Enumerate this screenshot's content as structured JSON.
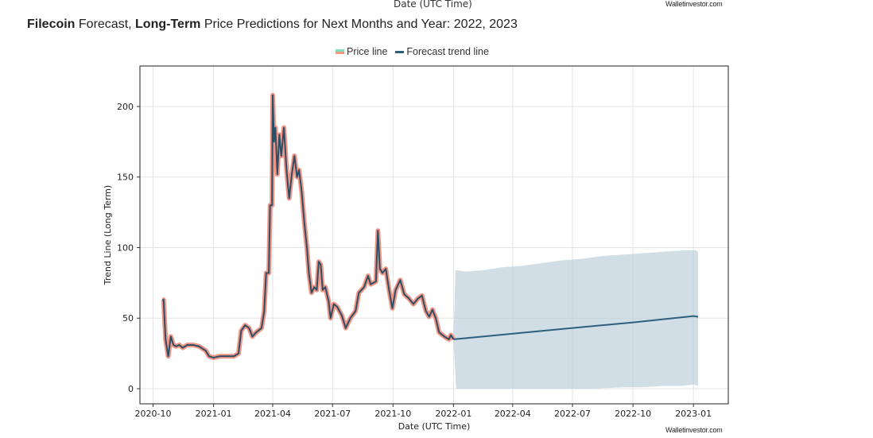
{
  "header": {
    "cut_off_label": "Date (UTC Time)",
    "watermark": "Walletinvestor.com",
    "title_parts": [
      {
        "text": "Filecoin",
        "bold": true
      },
      {
        "text": " Forecast, ",
        "bold": false
      },
      {
        "text": "Long-Term",
        "bold": true
      },
      {
        "text": " Price Predictions for Next Months and Year: 2022, 2023",
        "bold": false
      }
    ]
  },
  "legend": {
    "items": [
      {
        "label": "Price line",
        "colors": [
          "#7fe0c0",
          "#f59a86"
        ]
      },
      {
        "label": "Forecast trend line",
        "colors": [
          "#2d5f7f"
        ]
      }
    ]
  },
  "chart_data": {
    "type": "line",
    "xlabel": "Date (UTC Time)",
    "ylabel": "Trend Line (Long Term)",
    "xlim": [
      "2020-09-11",
      "2023-02-23"
    ],
    "ylim": [
      -10.7,
      228.7
    ],
    "x_ticks": [
      "2020-10",
      "2021-01",
      "2021-04",
      "2021-07",
      "2021-10",
      "2022-01",
      "2022-04",
      "2022-07",
      "2022-10",
      "2023-01"
    ],
    "y_ticks": [
      0,
      50,
      100,
      150,
      200
    ],
    "grid": true,
    "legend_placement": "top-center",
    "colors": {
      "price_glow": "#f08a78",
      "price_line": "#2d4f66",
      "forecast_line": "#2d5f7f",
      "band": "#b9cdd8"
    },
    "series": [
      {
        "name": "Price line",
        "points": [
          [
            "2020-10-15",
            63
          ],
          [
            "2020-10-17",
            63
          ],
          [
            "2020-10-20",
            35
          ],
          [
            "2020-10-24",
            23
          ],
          [
            "2020-10-28",
            37
          ],
          [
            "2020-11-01",
            31
          ],
          [
            "2020-11-05",
            30
          ],
          [
            "2020-11-10",
            31
          ],
          [
            "2020-11-15",
            29
          ],
          [
            "2020-11-22",
            31
          ],
          [
            "2020-12-01",
            31
          ],
          [
            "2020-12-10",
            30
          ],
          [
            "2020-12-20",
            27
          ],
          [
            "2020-12-25",
            23
          ],
          [
            "2021-01-01",
            22
          ],
          [
            "2021-01-10",
            23
          ],
          [
            "2021-01-20",
            23
          ],
          [
            "2021-02-01",
            23
          ],
          [
            "2021-02-08",
            25
          ],
          [
            "2021-02-12",
            41
          ],
          [
            "2021-02-18",
            45
          ],
          [
            "2021-02-24",
            43
          ],
          [
            "2021-03-01",
            37
          ],
          [
            "2021-03-07",
            40
          ],
          [
            "2021-03-15",
            43
          ],
          [
            "2021-03-19",
            55
          ],
          [
            "2021-03-22",
            82
          ],
          [
            "2021-03-26",
            82
          ],
          [
            "2021-03-28",
            130
          ],
          [
            "2021-03-31",
            130
          ],
          [
            "2021-04-01",
            208
          ],
          [
            "2021-04-03",
            175
          ],
          [
            "2021-04-05",
            185
          ],
          [
            "2021-04-08",
            152
          ],
          [
            "2021-04-11",
            180
          ],
          [
            "2021-04-14",
            165
          ],
          [
            "2021-04-18",
            185
          ],
          [
            "2021-04-22",
            155
          ],
          [
            "2021-04-26",
            135
          ],
          [
            "2021-04-30",
            152
          ],
          [
            "2021-05-04",
            165
          ],
          [
            "2021-05-08",
            150
          ],
          [
            "2021-05-11",
            155
          ],
          [
            "2021-05-15",
            140
          ],
          [
            "2021-05-19",
            118
          ],
          [
            "2021-05-23",
            100
          ],
          [
            "2021-05-26",
            82
          ],
          [
            "2021-05-30",
            68
          ],
          [
            "2021-06-03",
            72
          ],
          [
            "2021-06-07",
            70
          ],
          [
            "2021-06-10",
            90
          ],
          [
            "2021-06-13",
            88
          ],
          [
            "2021-06-16",
            70
          ],
          [
            "2021-06-20",
            72
          ],
          [
            "2021-06-25",
            62
          ],
          [
            "2021-06-28",
            50
          ],
          [
            "2021-07-03",
            60
          ],
          [
            "2021-07-08",
            58
          ],
          [
            "2021-07-15",
            52
          ],
          [
            "2021-07-21",
            43
          ],
          [
            "2021-07-28",
            50
          ],
          [
            "2021-08-05",
            55
          ],
          [
            "2021-08-10",
            68
          ],
          [
            "2021-08-18",
            72
          ],
          [
            "2021-08-24",
            80
          ],
          [
            "2021-08-28",
            74
          ],
          [
            "2021-09-05",
            76
          ],
          [
            "2021-09-08",
            112
          ],
          [
            "2021-09-11",
            85
          ],
          [
            "2021-09-15",
            82
          ],
          [
            "2021-09-20",
            85
          ],
          [
            "2021-09-25",
            70
          ],
          [
            "2021-09-30",
            57
          ],
          [
            "2021-10-05",
            70
          ],
          [
            "2021-10-12",
            77
          ],
          [
            "2021-10-18",
            67
          ],
          [
            "2021-10-25",
            64
          ],
          [
            "2021-11-01",
            60
          ],
          [
            "2021-11-08",
            64
          ],
          [
            "2021-11-14",
            66
          ],
          [
            "2021-11-20",
            55
          ],
          [
            "2021-11-25",
            51
          ],
          [
            "2021-11-30",
            56
          ],
          [
            "2021-12-05",
            50
          ],
          [
            "2021-12-10",
            40
          ],
          [
            "2021-12-18",
            37
          ],
          [
            "2021-12-25",
            35
          ],
          [
            "2021-12-28",
            38
          ],
          [
            "2022-01-01",
            35
          ]
        ]
      },
      {
        "name": "Forecast trend line",
        "points": [
          [
            "2022-01-01",
            35
          ],
          [
            "2022-04-01",
            39
          ],
          [
            "2022-07-01",
            43
          ],
          [
            "2022-10-01",
            47
          ],
          [
            "2023-01-01",
            51.5
          ],
          [
            "2023-01-08",
            51
          ]
        ]
      }
    ],
    "forecast_band": {
      "upper": [
        [
          "2022-01-01",
          36
        ],
        [
          "2022-01-04",
          84
        ],
        [
          "2022-01-20",
          83
        ],
        [
          "2022-02-15",
          84
        ],
        [
          "2022-03-15",
          86
        ],
        [
          "2022-04-15",
          87
        ],
        [
          "2022-05-15",
          89
        ],
        [
          "2022-06-15",
          91
        ],
        [
          "2022-07-15",
          92
        ],
        [
          "2022-08-15",
          94
        ],
        [
          "2022-09-15",
          95
        ],
        [
          "2022-10-15",
          96
        ],
        [
          "2022-11-15",
          97
        ],
        [
          "2022-12-15",
          98
        ],
        [
          "2023-01-05",
          98
        ],
        [
          "2023-01-08",
          97
        ]
      ],
      "lower": [
        [
          "2022-01-01",
          34
        ],
        [
          "2022-01-05",
          0
        ],
        [
          "2022-08-01",
          0
        ],
        [
          "2022-09-15",
          1
        ],
        [
          "2022-10-15",
          1
        ],
        [
          "2022-11-15",
          2
        ],
        [
          "2022-12-15",
          2
        ],
        [
          "2023-01-01",
          3
        ],
        [
          "2023-01-08",
          2
        ]
      ]
    }
  }
}
